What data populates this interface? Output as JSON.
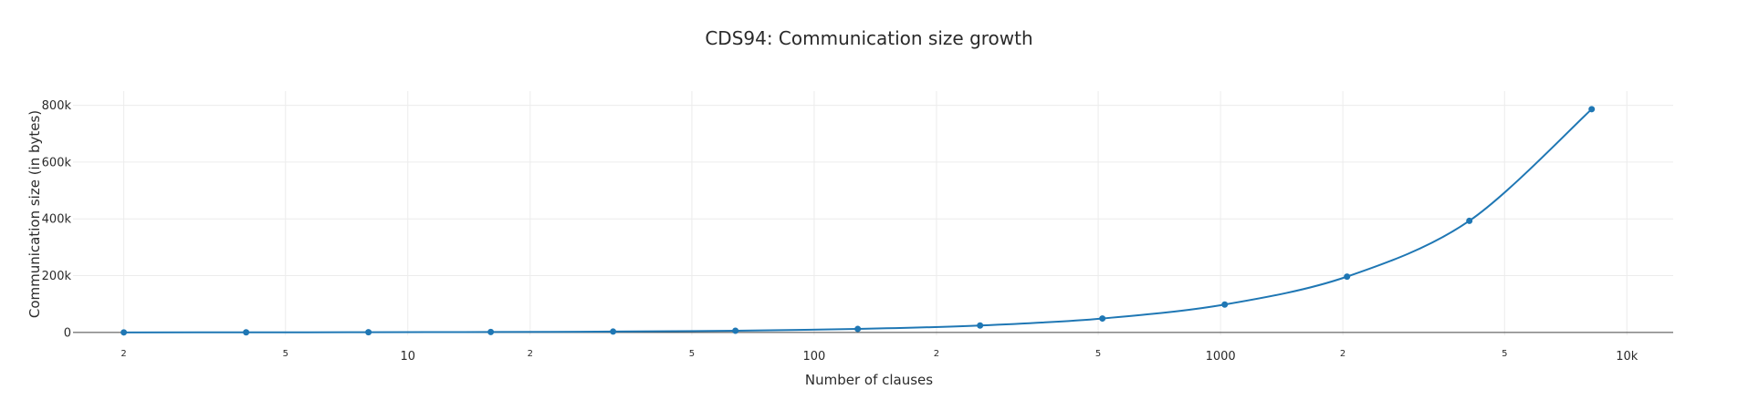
{
  "chart_data": {
    "type": "line",
    "title": "CDS94: Communication size growth",
    "xlabel": "Number of clauses",
    "ylabel": "Communication size (in bytes)",
    "x_scale": "log",
    "xlim": [
      1.5,
      13000
    ],
    "ylim": [
      -10000,
      850000
    ],
    "x_major_ticks": [
      {
        "value": 10,
        "label": "10"
      },
      {
        "value": 100,
        "label": "100"
      },
      {
        "value": 1000,
        "label": "1000"
      },
      {
        "value": 10000,
        "label": "10k"
      }
    ],
    "x_minor_ticks": [
      {
        "value": 2,
        "label": "2"
      },
      {
        "value": 5,
        "label": "5"
      },
      {
        "value": 20,
        "label": "2"
      },
      {
        "value": 50,
        "label": "5"
      },
      {
        "value": 200,
        "label": "2"
      },
      {
        "value": 500,
        "label": "5"
      },
      {
        "value": 2000,
        "label": "2"
      },
      {
        "value": 5000,
        "label": "5"
      }
    ],
    "y_ticks": [
      {
        "value": 0,
        "label": "0"
      },
      {
        "value": 200000,
        "label": "200k"
      },
      {
        "value": 400000,
        "label": "400k"
      },
      {
        "value": 600000,
        "label": "600k"
      },
      {
        "value": 800000,
        "label": "800k"
      }
    ],
    "grid": true,
    "line_shape": "spline",
    "series": [
      {
        "color": "#1f77b4",
        "x": [
          2,
          4,
          8,
          16,
          32,
          64,
          128,
          256,
          512,
          1024,
          2048,
          4096,
          8192
        ],
        "y": [
          190,
          380,
          770,
          1530,
          3070,
          6140,
          12290,
          24580,
          49150,
          98300,
          196600,
          393200,
          786400
        ]
      }
    ]
  }
}
